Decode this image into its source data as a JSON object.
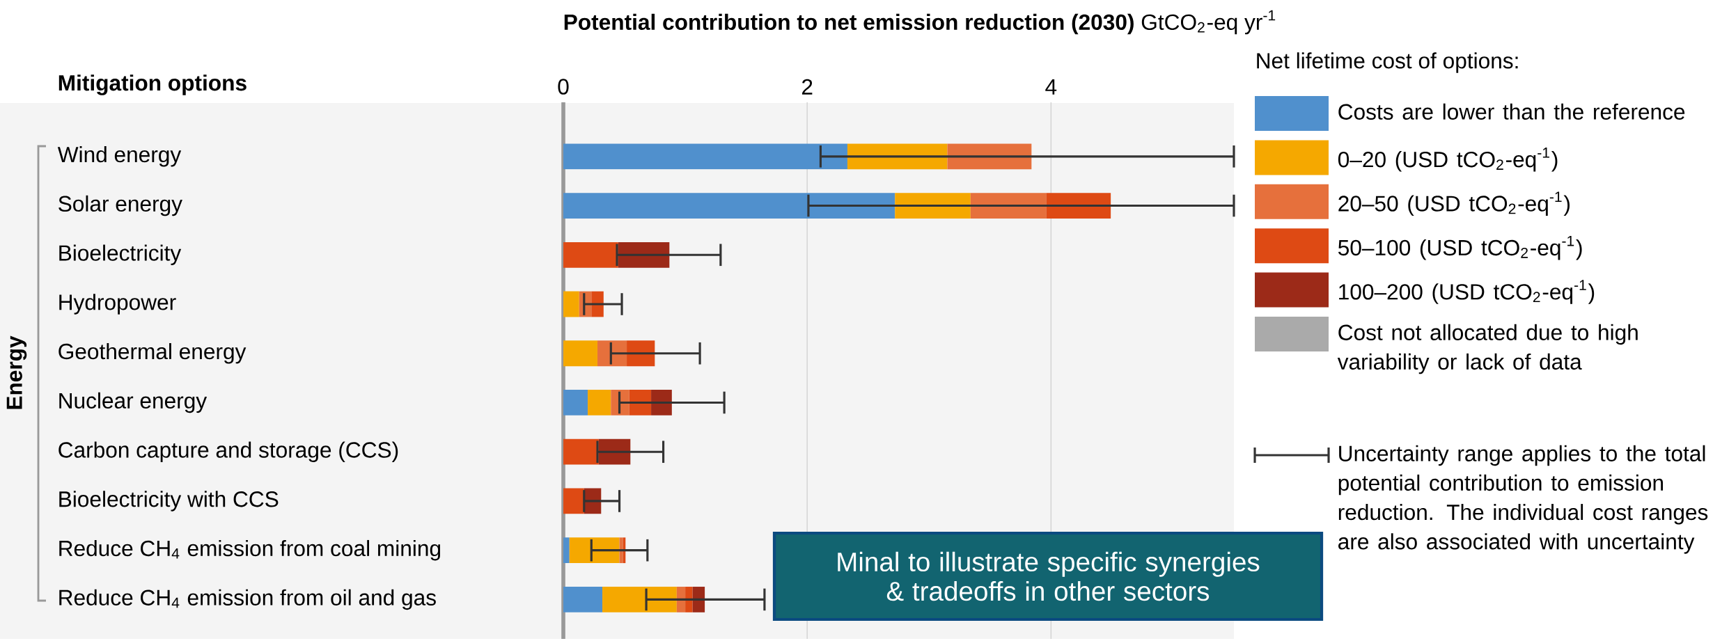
{
  "chart_data": {
    "type": "bar",
    "orientation": "horizontal",
    "stacked": true,
    "xlabel": "**Potential contribution to net emission reduction (2030)** GtCO$_{2}$-eq yr$^{-1}$",
    "categories": [
      "Wind energy",
      "Solar energy",
      "Bioelectricity",
      "Hydropower",
      "Geothermal energy",
      "Nuclear energy",
      "Carbon capture and storage (CCS)",
      "Bioelectricity with CCS",
      "Reduce CH$_{4}$ emission from coal mining",
      "Reduce CH$_{4}$ emission from oil and gas"
    ],
    "series": [
      {
        "name": "Costs are lower than the reference",
        "color": "#5090cd",
        "values": [
          2.33,
          2.72,
          null,
          null,
          null,
          0.2,
          null,
          null,
          0.05,
          0.32
        ]
      },
      {
        "name": "0–20 (USD tCO$_{2}$-eq$^{-1}$)",
        "color": "#f5a800",
        "values": [
          0.82,
          0.62,
          null,
          0.13,
          0.28,
          0.19,
          null,
          null,
          0.41,
          0.61
        ]
      },
      {
        "name": "20–50 (USD tCO$_{2}$-eq$^{-1}$)",
        "color": "#e6703c",
        "values": [
          0.69,
          0.62,
          null,
          0.1,
          0.24,
          0.15,
          null,
          null,
          0.03,
          0.07
        ],
        "errors": [
          [
            2.11,
            5.5
          ],
          null,
          null,
          null,
          null,
          null,
          null,
          null,
          null,
          null
        ]
      },
      {
        "name": "50–100 (USD tCO$_{2}$-eq$^{-1}$)",
        "color": "#de4a14",
        "values": [
          null,
          0.53,
          0.45,
          0.1,
          0.23,
          0.18,
          0.29,
          0.17,
          0.02,
          0.06
        ],
        "errors": [
          null,
          [
            2.01,
            5.5
          ],
          null,
          [
            0.17,
            0.48
          ],
          [
            0.39,
            1.12
          ],
          null,
          null,
          null,
          [
            0.23,
            0.69
          ],
          null
        ]
      },
      {
        "name": "100–200 (USD tCO$_{2}$-eq$^{-1}$)",
        "color": "#9c2a18",
        "values": [
          null,
          null,
          0.42,
          null,
          null,
          0.17,
          0.26,
          0.14,
          null,
          0.1
        ],
        "errors": [
          null,
          null,
          [
            0.44,
            1.29
          ],
          null,
          null,
          [
            0.46,
            1.32
          ],
          [
            0.28,
            0.82
          ],
          [
            0.17,
            0.46
          ],
          null,
          [
            0.68,
            1.65
          ]
        ]
      },
      {
        "name": "Cost not allocated due to high variability or lack of data",
        "color": "#aaaaaa",
        "values": [
          null,
          null,
          null,
          null,
          null,
          null,
          null,
          null,
          null,
          null
        ]
      }
    ],
    "xlim": [
      0,
      5.5
    ],
    "xticks": [
      0,
      2,
      4
    ],
    "grid": "x",
    "legend": "right",
    "legend_title": "Net lifetime cost of options:",
    "annotations": [
      "Mitigation options",
      "Energy",
      "Uncertainty range applies to the total potential contribution to emission reduction. The individual cost ranges are also associated with uncertainty",
      "Minal to illustrate specific synergies & tradeoffs in other sectors"
    ]
  }
}
